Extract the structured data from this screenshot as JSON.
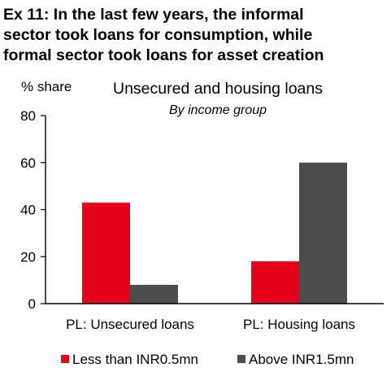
{
  "headline": {
    "lines": [
      "Ex 11: In the last few years, the informal",
      "sector took loans for consumption, while",
      "formal sector took loans for asset creation"
    ]
  },
  "chart_data": {
    "type": "bar",
    "title": "Unsecured and housing loans",
    "subtitle": "By income group",
    "ylabel": "% share",
    "xlabel": "",
    "ylim": [
      0,
      80
    ],
    "yticks": [
      0,
      20,
      40,
      60,
      80
    ],
    "categories": [
      "PL: Unsecured loans",
      "PL: Housing loans"
    ],
    "series": [
      {
        "name": "Less than INR0.5mn",
        "color": "#e2001a",
        "values": [
          43,
          18
        ]
      },
      {
        "name": "Above INR1.5mn",
        "color": "#4d4d4d",
        "values": [
          8,
          60
        ]
      }
    ],
    "grid": false,
    "legend_position": "bottom"
  }
}
